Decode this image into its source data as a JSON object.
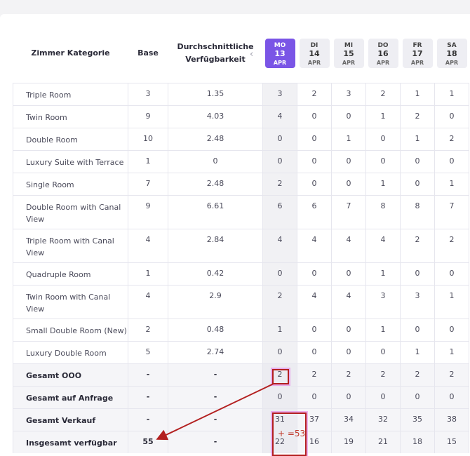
{
  "header": {
    "category": "Zimmer Kategorie",
    "base": "Base",
    "avg": "Durchschnittliche Verfügbarkeit"
  },
  "days": [
    {
      "name": "MO",
      "date": "13",
      "month": "APR",
      "active": true
    },
    {
      "name": "DI",
      "date": "14",
      "month": "APR"
    },
    {
      "name": "MI",
      "date": "15",
      "month": "APR"
    },
    {
      "name": "DO",
      "date": "16",
      "month": "APR"
    },
    {
      "name": "FR",
      "date": "17",
      "month": "APR"
    },
    {
      "name": "SA",
      "date": "18",
      "month": "APR"
    }
  ],
  "rooms": [
    {
      "name": "Triple Room",
      "base": "3",
      "avg": "1.35",
      "vals": [
        "3",
        "2",
        "3",
        "2",
        "1",
        "1"
      ]
    },
    {
      "name": "Twin Room",
      "base": "9",
      "avg": "4.03",
      "vals": [
        "4",
        "0",
        "0",
        "1",
        "2",
        "0"
      ]
    },
    {
      "name": "Double Room",
      "base": "10",
      "avg": "2.48",
      "vals": [
        "0",
        "0",
        "1",
        "0",
        "1",
        "2"
      ]
    },
    {
      "name": "Luxury Suite with Terrace",
      "base": "1",
      "avg": "0",
      "vals": [
        "0",
        "0",
        "0",
        "0",
        "0",
        "0"
      ]
    },
    {
      "name": "Single Room",
      "base": "7",
      "avg": "2.48",
      "vals": [
        "2",
        "0",
        "0",
        "1",
        "0",
        "1"
      ]
    },
    {
      "name": "Double Room with Canal View",
      "base": "9",
      "avg": "6.61",
      "vals": [
        "6",
        "6",
        "7",
        "8",
        "8",
        "7"
      ]
    },
    {
      "name": "Triple Room with Canal View",
      "base": "4",
      "avg": "2.84",
      "vals": [
        "4",
        "4",
        "4",
        "4",
        "2",
        "2"
      ]
    },
    {
      "name": "Quadruple Room",
      "base": "1",
      "avg": "0.42",
      "vals": [
        "0",
        "0",
        "0",
        "1",
        "0",
        "0"
      ]
    },
    {
      "name": "Twin Room with Canal View",
      "base": "4",
      "avg": "2.9",
      "vals": [
        "2",
        "4",
        "4",
        "3",
        "3",
        "1"
      ]
    },
    {
      "name": "Small Double Room (New)",
      "base": "2",
      "avg": "0.48",
      "vals": [
        "1",
        "0",
        "0",
        "1",
        "0",
        "0"
      ]
    },
    {
      "name": "Luxury Double Room",
      "base": "5",
      "avg": "2.74",
      "vals": [
        "0",
        "0",
        "0",
        "0",
        "1",
        "1"
      ]
    }
  ],
  "totals": [
    {
      "name": "Gesamt OOO",
      "base": "-",
      "avg": "-",
      "vals": [
        "2",
        "2",
        "2",
        "2",
        "2",
        "2"
      ]
    },
    {
      "name": "Gesamt auf Anfrage",
      "base": "-",
      "avg": "-",
      "vals": [
        "0",
        "0",
        "0",
        "0",
        "0",
        "0"
      ]
    },
    {
      "name": "Gesamt Verkauf",
      "base": "-",
      "avg": "-",
      "vals": [
        "31",
        "37",
        "34",
        "32",
        "35",
        "38"
      ]
    },
    {
      "name": "Insgesamt verfügbar",
      "base": "55",
      "avg": "-",
      "vals": [
        "22",
        "16",
        "19",
        "21",
        "18",
        "15"
      ]
    }
  ],
  "annotation": {
    "note": "+ =53",
    "color": "#b32020"
  },
  "icons": {
    "prev": "chevron-left-icon"
  }
}
